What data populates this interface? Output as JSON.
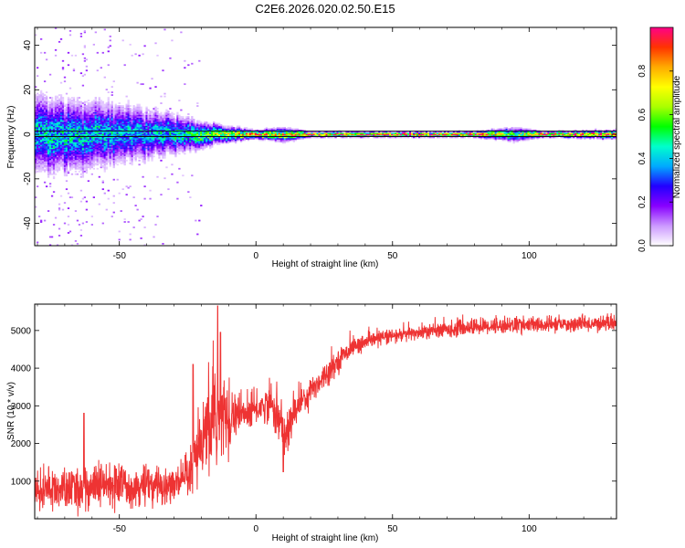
{
  "title": "C2E6.2026.020.02.50.E15",
  "chart_data": [
    {
      "type": "heatmap",
      "xlabel": "Height of straight line (km)",
      "ylabel": "Frequency (Hz)",
      "xlim": [
        -81,
        132
      ],
      "ylim": [
        -50,
        48
      ],
      "xticks": [
        -50,
        0,
        50,
        100
      ],
      "yticks": [
        -40,
        -20,
        0,
        20,
        40
      ],
      "centerline_hz": [
        1.5,
        -1.0
      ],
      "colorbar": {
        "label": "Normalized spectral amplitude",
        "range": [
          0,
          1
        ],
        "ticks": [
          "0.0",
          "0.2",
          "0.4",
          "0.6",
          "0.8"
        ],
        "tick_values": [
          0.0,
          0.2,
          0.4,
          0.6,
          0.8
        ],
        "colormap": [
          "#ffffff",
          "#cc99ff",
          "#8800ff",
          "#2200ff",
          "#00aaff",
          "#00ffcc",
          "#00ff00",
          "#aaff00",
          "#ffff00",
          "#ffaa00",
          "#ff3300",
          "#ff0088"
        ]
      },
      "spread_profile": [
        {
          "x": -81,
          "spread_hz": 14,
          "peak": 0.45
        },
        {
          "x": -60,
          "spread_hz": 12,
          "peak": 0.45
        },
        {
          "x": -40,
          "spread_hz": 9,
          "peak": 0.4
        },
        {
          "x": -25,
          "spread_hz": 6,
          "peak": 0.5
        },
        {
          "x": -12,
          "spread_hz": 3,
          "peak": 0.7
        },
        {
          "x": 0,
          "spread_hz": 1.5,
          "peak": 0.9
        },
        {
          "x": 10,
          "spread_hz": 2.5,
          "peak": 0.8
        },
        {
          "x": 20,
          "spread_hz": 1,
          "peak": 1.0
        },
        {
          "x": 80,
          "spread_hz": 1,
          "peak": 1.0
        },
        {
          "x": 95,
          "spread_hz": 2.5,
          "peak": 0.55
        },
        {
          "x": 105,
          "spread_hz": 1,
          "peak": 1.0
        },
        {
          "x": 132,
          "spread_hz": 1.5,
          "peak": 0.95
        }
      ]
    },
    {
      "type": "line",
      "xlabel": "Height of straight line (km)",
      "ylabel": "SNR (10 * v/v)",
      "xlim": [
        -81,
        132
      ],
      "ylim": [
        0,
        5700
      ],
      "xticks": [
        -50,
        0,
        50,
        100
      ],
      "yticks": [
        1000,
        2000,
        3000,
        4000,
        5000
      ],
      "color": "#ee3333",
      "envelope": [
        {
          "x": -81,
          "mean": 800,
          "noise": 450
        },
        {
          "x": -70,
          "mean": 750,
          "noise": 500
        },
        {
          "x": -60,
          "mean": 850,
          "noise": 550
        },
        {
          "x": -50,
          "mean": 900,
          "noise": 500
        },
        {
          "x": -40,
          "mean": 850,
          "noise": 450
        },
        {
          "x": -30,
          "mean": 900,
          "noise": 450
        },
        {
          "x": -25,
          "mean": 1000,
          "noise": 500
        },
        {
          "x": -22,
          "mean": 1600,
          "noise": 800
        },
        {
          "x": -18,
          "mean": 2300,
          "noise": 1000
        },
        {
          "x": -14,
          "mean": 2600,
          "noise": 1300
        },
        {
          "x": -10,
          "mean": 2800,
          "noise": 700
        },
        {
          "x": -5,
          "mean": 2750,
          "noise": 500
        },
        {
          "x": 0,
          "mean": 2900,
          "noise": 400
        },
        {
          "x": 5,
          "mean": 3100,
          "noise": 400
        },
        {
          "x": 8,
          "mean": 2700,
          "noise": 600
        },
        {
          "x": 11,
          "mean": 2200,
          "noise": 600
        },
        {
          "x": 15,
          "mean": 3000,
          "noise": 400
        },
        {
          "x": 20,
          "mean": 3400,
          "noise": 350
        },
        {
          "x": 25,
          "mean": 3800,
          "noise": 300
        },
        {
          "x": 30,
          "mean": 4200,
          "noise": 250
        },
        {
          "x": 35,
          "mean": 4550,
          "noise": 200
        },
        {
          "x": 45,
          "mean": 4800,
          "noise": 180
        },
        {
          "x": 60,
          "mean": 4950,
          "noise": 180
        },
        {
          "x": 80,
          "mean": 5100,
          "noise": 200
        },
        {
          "x": 95,
          "mean": 5150,
          "noise": 200
        },
        {
          "x": 110,
          "mean": 5150,
          "noise": 180
        },
        {
          "x": 132,
          "mean": 5200,
          "noise": 180
        }
      ],
      "spikes": [
        {
          "x": -63,
          "y": 2800
        },
        {
          "x": -23,
          "y": 4100
        },
        {
          "x": -14,
          "y": 5650
        },
        {
          "x": -13,
          "y": 4950
        },
        {
          "x": 10,
          "y": 1250
        }
      ]
    }
  ]
}
